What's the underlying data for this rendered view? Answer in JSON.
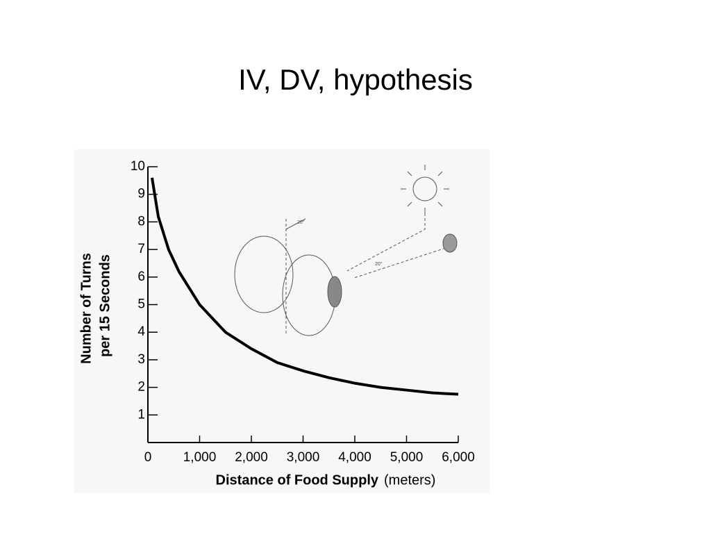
{
  "title": "IV, DV, hypothesis",
  "chart_data": {
    "type": "line",
    "ylabel": [
      "Number of Turns",
      "per 15 Seconds"
    ],
    "xlabel": "Distance of Food Supply",
    "xlabel_unit": "(meters)",
    "annotations": [
      "20°",
      "20°"
    ],
    "xlim": [
      0,
      6000
    ],
    "ylim": [
      0,
      10
    ],
    "xticks": [
      0,
      {
        "value": 1000,
        "label": "1,000"
      },
      {
        "value": 2000,
        "label": "2,000"
      },
      {
        "value": 3000,
        "label": "3,000"
      },
      {
        "value": 4000,
        "label": "4,000"
      },
      {
        "value": 5000,
        "label": "5,000"
      },
      {
        "value": 6000,
        "label": "6,000"
      }
    ],
    "yticks": [
      1,
      2,
      3,
      4,
      5,
      6,
      7,
      8,
      9,
      10
    ],
    "color": "#000000",
    "x": [
      80,
      200,
      400,
      600,
      1000,
      1500,
      2000,
      2500,
      3000,
      3500,
      4000,
      4500,
      5000,
      5500,
      6000
    ],
    "values": [
      9.6,
      8.2,
      7.0,
      6.2,
      5.0,
      4.0,
      3.4,
      2.9,
      2.6,
      2.35,
      2.15,
      2.0,
      1.9,
      1.8,
      1.75
    ]
  }
}
